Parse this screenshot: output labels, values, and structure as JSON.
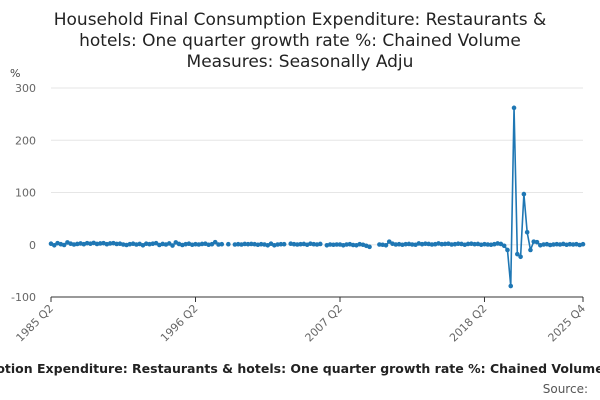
{
  "chart_data": {
    "type": "line",
    "title_lines": [
      "Household Final Consumption Expenditure: Restaurants &",
      "hotels: One quarter growth rate %: Chained Volume",
      "Measures: Seasonally Adju"
    ],
    "y_unit": "%",
    "ylim": [
      -100,
      300
    ],
    "y_ticks": [
      300,
      200,
      100,
      0,
      -100
    ],
    "x_tick_labels": [
      "1985 Q2",
      "1996 Q2",
      "2007 Q2",
      "2018 Q2",
      "2025 Q4"
    ],
    "x_tick_quarters": [
      "1985 Q2",
      "1996 Q2",
      "2007 Q2",
      "2018 Q2",
      "2025 Q4"
    ],
    "x_range": [
      "1985 Q2",
      "2025 Q4"
    ],
    "series": [
      {
        "color": "#1f77b4",
        "points": [
          [
            "1985 Q2",
            2.0
          ],
          [
            "1985 Q3",
            -1.0
          ],
          [
            "1985 Q4",
            3.0
          ],
          [
            "1986 Q1",
            1.0
          ],
          [
            "1986 Q2",
            -0.5
          ],
          [
            "1986 Q3",
            4.5
          ],
          [
            "1986 Q4",
            2.0
          ],
          [
            "1987 Q1",
            0.5
          ],
          [
            "1987 Q2",
            1.5
          ],
          [
            "1987 Q3",
            2.5
          ],
          [
            "1987 Q4",
            1.0
          ],
          [
            "1988 Q1",
            3.0
          ],
          [
            "1988 Q2",
            2.0
          ],
          [
            "1988 Q3",
            3.5
          ],
          [
            "1988 Q4",
            1.5
          ],
          [
            "1989 Q1",
            2.5
          ],
          [
            "1989 Q2",
            3.0
          ],
          [
            "1989 Q3",
            1.0
          ],
          [
            "1989 Q4",
            2.5
          ],
          [
            "1990 Q1",
            3.0
          ],
          [
            "1990 Q2",
            1.5
          ],
          [
            "1990 Q3",
            2.0
          ],
          [
            "1990 Q4",
            0.5
          ],
          [
            "1991 Q1",
            -0.5
          ],
          [
            "1991 Q2",
            1.0
          ],
          [
            "1991 Q3",
            2.0
          ],
          [
            "1991 Q4",
            0.5
          ],
          [
            "1992 Q1",
            1.5
          ],
          [
            "1992 Q2",
            -1.0
          ],
          [
            "1992 Q3",
            2.0
          ],
          [
            "1992 Q4",
            1.0
          ],
          [
            "1993 Q1",
            2.0
          ],
          [
            "1993 Q2",
            3.0
          ],
          [
            "1993 Q3",
            -0.5
          ],
          [
            "1993 Q4",
            1.5
          ],
          [
            "1994 Q1",
            0.5
          ],
          [
            "1994 Q2",
            2.5
          ],
          [
            "1994 Q3",
            -1.5
          ],
          [
            "1994 Q4",
            4.5
          ],
          [
            "1995 Q1",
            1.5
          ],
          [
            "1995 Q2",
            -0.5
          ],
          [
            "1995 Q3",
            1.0
          ],
          [
            "1995 Q4",
            2.0
          ],
          [
            "1996 Q1",
            0.0
          ],
          [
            "1996 Q2",
            1.0
          ],
          [
            "1996 Q3",
            0.5
          ],
          [
            "1996 Q4",
            1.5
          ],
          [
            "1997 Q1",
            2.0
          ],
          [
            "1997 Q2",
            0.0
          ],
          [
            "1997 Q3",
            1.0
          ],
          [
            "1997 Q4",
            5.0
          ],
          [
            "1998 Q1",
            0.5
          ],
          [
            "1998 Q2",
            1.0
          ],
          [
            "1998 Q4",
            1.0
          ],
          [
            "1999 Q2",
            0.5
          ],
          [
            "1999 Q3",
            1.0
          ],
          [
            "1999 Q4",
            0.5
          ],
          [
            "2000 Q1",
            1.5
          ],
          [
            "2000 Q2",
            1.0
          ],
          [
            "2000 Q3",
            1.5
          ],
          [
            "2000 Q4",
            1.0
          ],
          [
            "2001 Q1",
            0.0
          ],
          [
            "2001 Q2",
            1.0
          ],
          [
            "2001 Q3",
            0.5
          ],
          [
            "2001 Q4",
            -1.0
          ],
          [
            "2002 Q1",
            2.0
          ],
          [
            "2002 Q2",
            -1.0
          ],
          [
            "2002 Q3",
            0.5
          ],
          [
            "2002 Q4",
            1.0
          ],
          [
            "2003 Q1",
            1.0
          ],
          [
            "2003 Q3",
            2.0
          ],
          [
            "2003 Q4",
            1.0
          ],
          [
            "2004 Q1",
            0.5
          ],
          [
            "2004 Q2",
            1.0
          ],
          [
            "2004 Q3",
            1.5
          ],
          [
            "2004 Q4",
            0.0
          ],
          [
            "2005 Q1",
            2.0
          ],
          [
            "2005 Q2",
            1.0
          ],
          [
            "2005 Q3",
            0.5
          ],
          [
            "2005 Q4",
            1.5
          ],
          [
            "2006 Q2",
            -1.0
          ],
          [
            "2006 Q3",
            0.5
          ],
          [
            "2006 Q4",
            0.0
          ],
          [
            "2007 Q1",
            0.5
          ],
          [
            "2007 Q2",
            0.5
          ],
          [
            "2007 Q3",
            -1.0
          ],
          [
            "2007 Q4",
            0.5
          ],
          [
            "2008 Q1",
            1.0
          ],
          [
            "2008 Q2",
            -0.5
          ],
          [
            "2008 Q3",
            -1.0
          ],
          [
            "2008 Q4",
            1.0
          ],
          [
            "2009 Q1",
            0.0
          ],
          [
            "2009 Q2",
            -2.0
          ],
          [
            "2009 Q3",
            -4.0
          ],
          [
            "2010 Q2",
            0.5
          ],
          [
            "2010 Q3",
            0.0
          ],
          [
            "2010 Q4",
            -1.0
          ],
          [
            "2011 Q1",
            6.0
          ],
          [
            "2011 Q2",
            2.0
          ],
          [
            "2011 Q3",
            0.5
          ],
          [
            "2011 Q4",
            1.0
          ],
          [
            "2012 Q1",
            0.0
          ],
          [
            "2012 Q2",
            1.0
          ],
          [
            "2012 Q3",
            1.5
          ],
          [
            "2012 Q4",
            0.5
          ],
          [
            "2013 Q1",
            0.0
          ],
          [
            "2013 Q2",
            2.5
          ],
          [
            "2013 Q3",
            1.0
          ],
          [
            "2013 Q4",
            2.0
          ],
          [
            "2014 Q1",
            1.5
          ],
          [
            "2014 Q2",
            0.5
          ],
          [
            "2014 Q3",
            1.0
          ],
          [
            "2014 Q4",
            2.5
          ],
          [
            "2015 Q1",
            1.0
          ],
          [
            "2015 Q2",
            1.5
          ],
          [
            "2015 Q3",
            2.0
          ],
          [
            "2015 Q4",
            0.5
          ],
          [
            "2016 Q1",
            1.0
          ],
          [
            "2016 Q2",
            2.0
          ],
          [
            "2016 Q3",
            1.5
          ],
          [
            "2016 Q4",
            0.0
          ],
          [
            "2017 Q1",
            1.5
          ],
          [
            "2017 Q2",
            2.0
          ],
          [
            "2017 Q3",
            1.0
          ],
          [
            "2017 Q4",
            1.5
          ],
          [
            "2018 Q1",
            0.0
          ],
          [
            "2018 Q2",
            1.0
          ],
          [
            "2018 Q3",
            0.5
          ],
          [
            "2018 Q4",
            0.0
          ],
          [
            "2019 Q1",
            1.0
          ],
          [
            "2019 Q2",
            2.5
          ],
          [
            "2019 Q3",
            1.5
          ],
          [
            "2019 Q4",
            -2.0
          ],
          [
            "2020 Q1",
            -10.0
          ],
          [
            "2020 Q2",
            -79.0
          ],
          [
            "2020 Q3",
            262.0
          ],
          [
            "2020 Q4",
            -18.0
          ],
          [
            "2021 Q1",
            -23.0
          ],
          [
            "2021 Q2",
            97.0
          ],
          [
            "2021 Q3",
            24.0
          ],
          [
            "2021 Q4",
            -10.0
          ],
          [
            "2022 Q1",
            6.0
          ],
          [
            "2022 Q2",
            5.0
          ],
          [
            "2022 Q3",
            -1.0
          ],
          [
            "2022 Q4",
            0.5
          ],
          [
            "2023 Q1",
            1.0
          ],
          [
            "2023 Q2",
            -0.5
          ],
          [
            "2023 Q3",
            0.5
          ],
          [
            "2023 Q4",
            1.0
          ],
          [
            "2024 Q1",
            0.5
          ],
          [
            "2024 Q2",
            1.5
          ],
          [
            "2024 Q3",
            0.0
          ],
          [
            "2024 Q4",
            1.0
          ],
          [
            "2025 Q1",
            0.5
          ],
          [
            "2025 Q2",
            1.0
          ],
          [
            "2025 Q3",
            -0.5
          ],
          [
            "2025 Q4",
            1.0
          ]
        ]
      }
    ],
    "grid": "horizontal",
    "legend": "none"
  },
  "footer": {
    "caption": "otion Expenditure: Restaurants & hotels: One quarter growth rate %: Chained Volume",
    "source": "Source:"
  },
  "colors": {
    "line": "#1f77b4",
    "grid": "#e6e6e6",
    "axis": "#333333"
  }
}
